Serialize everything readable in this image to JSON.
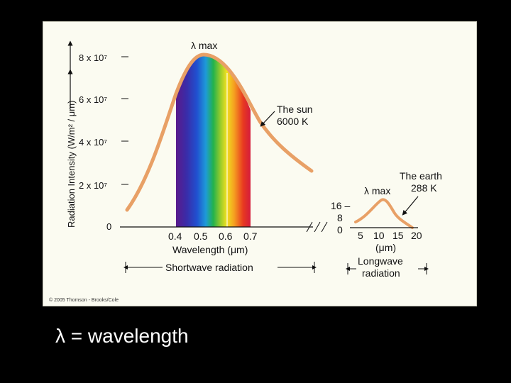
{
  "caption": "λ = wavelength",
  "copyright": "© 2005 Thomson - Brooks/Cole",
  "shortwave": {
    "y_axis_label": "Radiation Intensity (W/m² / μm)",
    "y_ticks": [
      "8 x 10⁷",
      "6 x 10⁷",
      "4 x 10⁷",
      "2 x 10⁷",
      "0"
    ],
    "x_ticks": [
      "0.4",
      "0.5",
      "0.6",
      "0.7"
    ],
    "x_axis_label": "Wavelength (μm)",
    "peak_label": "λ max",
    "sun_label": [
      "The sun",
      "6000 K"
    ],
    "band_label": "Shortwave radiation"
  },
  "longwave": {
    "y_ticks": [
      "16 –",
      "8",
      "0"
    ],
    "x_ticks": [
      "5",
      "10",
      "15",
      "20"
    ],
    "x_unit": "(μm)",
    "peak_label": "λ max",
    "earth_label": [
      "The earth",
      "288 K"
    ],
    "band_label": [
      "Longwave",
      "radiation"
    ]
  },
  "colors": {
    "curve": "#e8a066",
    "spectrum": [
      "#5a1a8c",
      "#3a2ca8",
      "#2050d0",
      "#1e9ad8",
      "#22b24c",
      "#9ccc2a",
      "#f0e020",
      "#f5a020",
      "#e83a20",
      "#d41c3c"
    ],
    "panel": "#fbfbf1"
  }
}
